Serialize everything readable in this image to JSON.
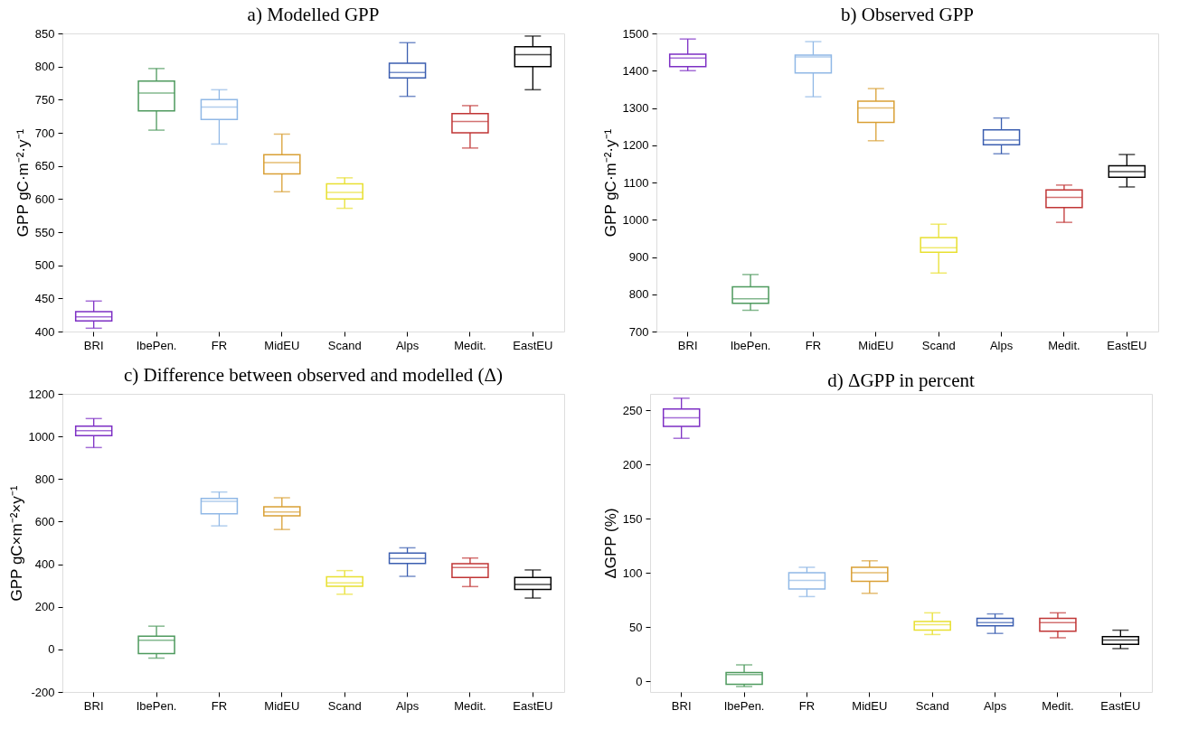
{
  "chart_data": [
    {
      "type": "box",
      "title": "a) Modelled GPP",
      "ylabel": "GPP gC·m⁻²·y⁻¹",
      "categories": [
        "BRI",
        "IbePen.",
        "FR",
        "MidEU",
        "Scand",
        "Alps",
        "Medit.",
        "EastEU"
      ],
      "colors": [
        "#7d2fc4",
        "#4e9a5e",
        "#90b8e6",
        "#d9a035",
        "#e8e030",
        "#3b5eb0",
        "#c03535",
        "#000000"
      ],
      "ylim": [
        400,
        850
      ],
      "yticks": [
        400,
        450,
        500,
        550,
        600,
        650,
        700,
        750,
        800,
        850
      ],
      "boxes": [
        {
          "low": 405,
          "q1": 416,
          "median": 422,
          "q3": 430,
          "high": 446
        },
        {
          "low": 704,
          "q1": 733,
          "median": 760,
          "q3": 778,
          "high": 797
        },
        {
          "low": 683,
          "q1": 720,
          "median": 739,
          "q3": 750,
          "high": 765
        },
        {
          "low": 611,
          "q1": 638,
          "median": 655,
          "q3": 667,
          "high": 698
        },
        {
          "low": 586,
          "q1": 600,
          "median": 610,
          "q3": 623,
          "high": 632
        },
        {
          "low": 755,
          "q1": 783,
          "median": 791,
          "q3": 805,
          "high": 836
        },
        {
          "low": 677,
          "q1": 700,
          "median": 717,
          "q3": 729,
          "high": 741
        },
        {
          "low": 765,
          "q1": 800,
          "median": 818,
          "q3": 830,
          "high": 846
        }
      ]
    },
    {
      "type": "box",
      "title": "b) Observed GPP",
      "ylabel": "GPP gC·m⁻²·y⁻¹",
      "categories": [
        "BRI",
        "IbePen.",
        "FR",
        "MidEU",
        "Scand",
        "Alps",
        "Medit.",
        "EastEU"
      ],
      "colors": [
        "#7d2fc4",
        "#4e9a5e",
        "#90b8e6",
        "#d9a035",
        "#e8e030",
        "#3b5eb0",
        "#c03535",
        "#000000"
      ],
      "ylim": [
        700,
        1500
      ],
      "yticks": [
        700,
        800,
        900,
        1000,
        1100,
        1200,
        1300,
        1400,
        1500
      ],
      "boxes": [
        {
          "low": 1400,
          "q1": 1411,
          "median": 1434,
          "q3": 1444,
          "high": 1485
        },
        {
          "low": 757,
          "q1": 776,
          "median": 788,
          "q3": 820,
          "high": 853
        },
        {
          "low": 1330,
          "q1": 1394,
          "median": 1437,
          "q3": 1442,
          "high": 1478
        },
        {
          "low": 1212,
          "q1": 1261,
          "median": 1300,
          "q3": 1318,
          "high": 1352
        },
        {
          "low": 857,
          "q1": 913,
          "median": 925,
          "q3": 952,
          "high": 988
        },
        {
          "low": 1177,
          "q1": 1201,
          "median": 1214,
          "q3": 1241,
          "high": 1273
        },
        {
          "low": 993,
          "q1": 1033,
          "median": 1060,
          "q3": 1080,
          "high": 1093
        },
        {
          "low": 1088,
          "q1": 1114,
          "median": 1129,
          "q3": 1145,
          "high": 1175
        }
      ]
    },
    {
      "type": "box",
      "title": "c) Difference between observed and modelled (Δ)",
      "ylabel": "GPP gC×m⁻²×y⁻¹",
      "categories": [
        "BRI",
        "IbePen.",
        "FR",
        "MidEU",
        "Scand",
        "Alps",
        "Medit.",
        "EastEU"
      ],
      "colors": [
        "#7d2fc4",
        "#4e9a5e",
        "#90b8e6",
        "#d9a035",
        "#e8e030",
        "#3b5eb0",
        "#c03535",
        "#000000"
      ],
      "ylim": [
        -200,
        1200
      ],
      "yticks": [
        -200,
        0,
        200,
        400,
        600,
        800,
        1000,
        1200
      ],
      "boxes": [
        {
          "low": 948,
          "q1": 1004,
          "median": 1027,
          "q3": 1048,
          "high": 1084
        },
        {
          "low": -41,
          "q1": -20,
          "median": 43,
          "q3": 62,
          "high": 109
        },
        {
          "low": 580,
          "q1": 637,
          "median": 695,
          "q3": 709,
          "high": 739
        },
        {
          "low": 563,
          "q1": 627,
          "median": 645,
          "q3": 670,
          "high": 712
        },
        {
          "low": 259,
          "q1": 296,
          "median": 312,
          "q3": 341,
          "high": 370
        },
        {
          "low": 343,
          "q1": 404,
          "median": 427,
          "q3": 452,
          "high": 477
        },
        {
          "low": 295,
          "q1": 338,
          "median": 384,
          "q3": 402,
          "high": 429
        },
        {
          "low": 241,
          "q1": 282,
          "median": 305,
          "q3": 338,
          "high": 373
        }
      ]
    },
    {
      "type": "box",
      "title": "d) ΔGPP in percent",
      "ylabel": "ΔGPP (%)",
      "categories": [
        "BRI",
        "IbePen.",
        "FR",
        "MidEU",
        "Scand",
        "Alps",
        "Medit.",
        "EastEU"
      ],
      "colors": [
        "#7d2fc4",
        "#4e9a5e",
        "#90b8e6",
        "#d9a035",
        "#e8e030",
        "#3b5eb0",
        "#c03535",
        "#000000"
      ],
      "ylim": [
        -10,
        265
      ],
      "yticks": [
        0,
        50,
        100,
        150,
        200,
        250
      ],
      "boxes": [
        {
          "low": 224,
          "q1": 235,
          "median": 243,
          "q3": 251,
          "high": 261
        },
        {
          "low": -5,
          "q1": -3,
          "median": 6,
          "q3": 8,
          "high": 15
        },
        {
          "low": 78,
          "q1": 85,
          "median": 93,
          "q3": 100,
          "high": 105
        },
        {
          "low": 81,
          "q1": 92,
          "median": 100,
          "q3": 105,
          "high": 111
        },
        {
          "low": 43,
          "q1": 47,
          "median": 52,
          "q3": 55,
          "high": 63
        },
        {
          "low": 44,
          "q1": 51,
          "median": 54,
          "q3": 58,
          "high": 62
        },
        {
          "low": 40,
          "q1": 46,
          "median": 54,
          "q3": 58,
          "high": 63
        },
        {
          "low": 30,
          "q1": 34,
          "median": 38,
          "q3": 41,
          "high": 47
        }
      ]
    }
  ]
}
